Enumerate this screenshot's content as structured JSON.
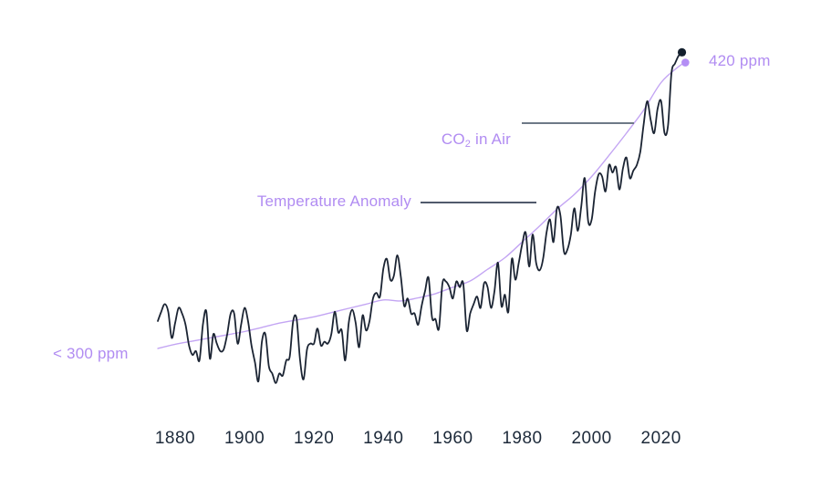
{
  "chart_data": {
    "type": "line",
    "grid": false,
    "legend_position": "inline-annotations",
    "x_range": [
      1874,
      2028
    ],
    "x_axis": {
      "tick_labels": [
        "1880",
        "1900",
        "1920",
        "1940",
        "1960",
        "1980",
        "2000",
        "2020"
      ],
      "tick_years": [
        1880,
        1900,
        1920,
        1940,
        1960,
        1980,
        2000,
        2020
      ]
    },
    "annotations": {
      "co2_line_label": {
        "prefix": "CO",
        "sub": "2",
        "suffix": " in Air"
      },
      "temp_line_label": "Temperature Anomaly",
      "co2_end_label": "420 ppm",
      "co2_start_label": "< 300 ppm"
    },
    "colors": {
      "temperature_line": "#1b2433",
      "co2_line": "#c3a5f3",
      "co2_end_dot": "#b48ef5",
      "temp_end_dot": "#14202e",
      "label_purple": "#b18cf2",
      "tick_text": "#1d2a3a",
      "co2_pointer_line": "#6e7987",
      "temp_pointer_line": "#16233b",
      "background": "#ffffff"
    },
    "series": [
      {
        "name": "Temperature Anomaly",
        "start_year": 1875,
        "end_year": 2026,
        "values": [
          -0.15,
          -0.1,
          -0.06,
          -0.1,
          -0.24,
          -0.16,
          -0.08,
          -0.11,
          -0.17,
          -0.28,
          -0.33,
          -0.31,
          -0.36,
          -0.17,
          -0.1,
          -0.35,
          -0.22,
          -0.27,
          -0.31,
          -0.3,
          -0.22,
          -0.11,
          -0.11,
          -0.27,
          -0.17,
          -0.08,
          -0.15,
          -0.28,
          -0.37,
          -0.47,
          -0.26,
          -0.22,
          -0.39,
          -0.43,
          -0.48,
          -0.43,
          -0.44,
          -0.36,
          -0.34,
          -0.15,
          -0.14,
          -0.36,
          -0.46,
          -0.3,
          -0.27,
          -0.27,
          -0.19,
          -0.28,
          -0.26,
          -0.27,
          -0.22,
          -0.1,
          -0.21,
          -0.2,
          -0.36,
          -0.16,
          -0.09,
          -0.16,
          -0.29,
          -0.12,
          -0.2,
          -0.15,
          -0.03,
          0.0,
          -0.02,
          0.13,
          0.18,
          0.07,
          0.09,
          0.2,
          0.09,
          -0.07,
          -0.03,
          -0.11,
          -0.11,
          -0.17,
          -0.07,
          0.01,
          0.08,
          -0.13,
          -0.14,
          -0.19,
          0.05,
          0.06,
          0.03,
          -0.03,
          0.06,
          0.03,
          0.05,
          -0.2,
          -0.11,
          -0.06,
          -0.02,
          -0.08,
          0.05,
          0.03,
          -0.08,
          0.01,
          0.16,
          -0.07,
          -0.01,
          -0.1,
          0.18,
          0.07,
          0.16,
          0.26,
          0.32,
          0.14,
          0.31,
          0.16,
          0.12,
          0.18,
          0.32,
          0.39,
          0.27,
          0.45,
          0.41,
          0.22,
          0.23,
          0.31,
          0.45,
          0.33,
          0.46,
          0.61,
          0.38,
          0.39,
          0.54,
          0.63,
          0.62,
          0.54,
          0.68,
          0.64,
          0.67,
          0.55,
          0.66,
          0.72,
          0.61,
          0.65,
          0.68,
          0.75,
          0.9,
          1.02,
          0.92,
          0.85,
          0.98,
          1.02,
          0.85,
          0.89,
          1.17,
          1.22,
          1.26,
          1.28
        ]
      },
      {
        "name": "CO2 in Air",
        "unit": "ppm",
        "x": [
          1875,
          1880,
          1885,
          1890,
          1895,
          1900,
          1905,
          1910,
          1915,
          1920,
          1925,
          1930,
          1935,
          1940,
          1945,
          1950,
          1955,
          1960,
          1965,
          1970,
          1975,
          1980,
          1985,
          1990,
          1995,
          2000,
          2005,
          2010,
          2015,
          2020,
          2025,
          2027
        ],
        "values": [
          288,
          290,
          291.5,
          293,
          294.5,
          296,
          298,
          300,
          301.5,
          303,
          305,
          307,
          309,
          311,
          310.5,
          312,
          314,
          317,
          320,
          325.5,
          331,
          338.5,
          346,
          354,
          361,
          369.5,
          379.5,
          390,
          401,
          414,
          421.5,
          423.5
        ]
      }
    ]
  }
}
